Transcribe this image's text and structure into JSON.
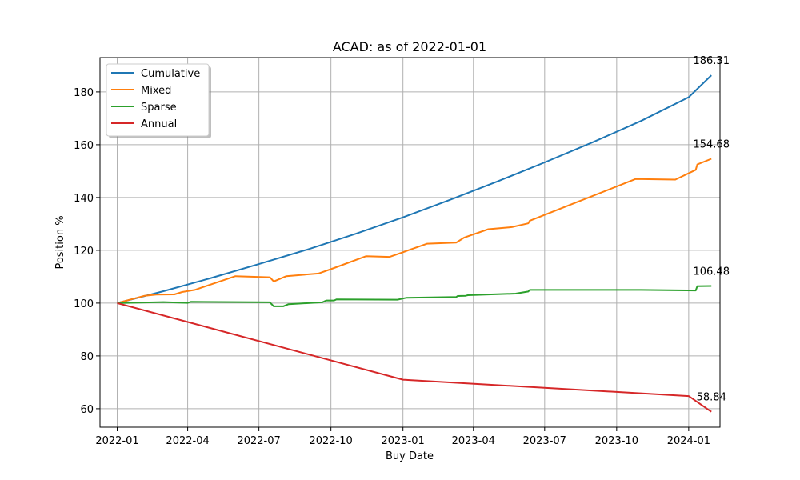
{
  "chart_data": {
    "type": "line",
    "title": "ACAD: as of 2022-01-01",
    "xlabel": "Buy Date",
    "ylabel": "Position %",
    "x_range": [
      "2021-12-10",
      "2024-02-10"
    ],
    "ylim": [
      53,
      193
    ],
    "grid": true,
    "legend_position": "top-left",
    "x_ticks": [
      {
        "date": "2022-01-01",
        "label": "2022-01"
      },
      {
        "date": "2022-04-01",
        "label": "2022-04"
      },
      {
        "date": "2022-07-01",
        "label": "2022-07"
      },
      {
        "date": "2022-10-01",
        "label": "2022-10"
      },
      {
        "date": "2023-01-01",
        "label": "2023-01"
      },
      {
        "date": "2023-04-01",
        "label": "2023-04"
      },
      {
        "date": "2023-07-01",
        "label": "2023-07"
      },
      {
        "date": "2023-10-01",
        "label": "2023-10"
      },
      {
        "date": "2024-01-01",
        "label": "2024-01"
      }
    ],
    "y_ticks": [
      60,
      80,
      100,
      120,
      140,
      160,
      180
    ],
    "series": [
      {
        "name": "Cumulative",
        "color": "#1f77b4",
        "end_label": "186.31",
        "points": [
          [
            "2022-01-01",
            100
          ],
          [
            "2022-03-01",
            104.5
          ],
          [
            "2022-05-01",
            109.5
          ],
          [
            "2022-07-01",
            114.8
          ],
          [
            "2022-09-01",
            120.3
          ],
          [
            "2022-11-01",
            126.2
          ],
          [
            "2023-01-01",
            132.5
          ],
          [
            "2023-03-01",
            139.0
          ],
          [
            "2023-05-01",
            146.0
          ],
          [
            "2023-07-01",
            153.3
          ],
          [
            "2023-09-01",
            161.0
          ],
          [
            "2023-11-01",
            169.0
          ],
          [
            "2024-01-01",
            178.0
          ],
          [
            "2024-01-30",
            186.31
          ]
        ]
      },
      {
        "name": "Mixed",
        "color": "#ff7f0e",
        "end_label": "154.68",
        "points": [
          [
            "2022-01-01",
            100
          ],
          [
            "2022-02-05",
            102.8
          ],
          [
            "2022-02-20",
            103.2
          ],
          [
            "2022-03-15",
            103.3
          ],
          [
            "2022-03-25",
            104.2
          ],
          [
            "2022-04-10",
            105.0
          ],
          [
            "2022-06-01",
            110.2
          ],
          [
            "2022-07-15",
            109.8
          ],
          [
            "2022-07-20",
            108.2
          ],
          [
            "2022-08-05",
            110.2
          ],
          [
            "2022-09-15",
            111.2
          ],
          [
            "2022-10-05",
            113.3
          ],
          [
            "2022-11-15",
            117.8
          ],
          [
            "2022-12-15",
            117.5
          ],
          [
            "2023-02-01",
            122.5
          ],
          [
            "2023-03-10",
            122.9
          ],
          [
            "2023-03-20",
            124.8
          ],
          [
            "2023-04-20",
            128.0
          ],
          [
            "2023-05-20",
            128.8
          ],
          [
            "2023-06-10",
            130.2
          ],
          [
            "2023-06-12",
            131.2
          ],
          [
            "2023-10-25",
            147.0
          ],
          [
            "2023-12-15",
            146.8
          ],
          [
            "2024-01-10",
            150.5
          ],
          [
            "2024-01-12",
            152.5
          ],
          [
            "2024-01-30",
            154.68
          ]
        ]
      },
      {
        "name": "Sparse",
        "color": "#2ca02c",
        "end_label": "106.48",
        "points": [
          [
            "2022-01-01",
            100
          ],
          [
            "2022-03-01",
            100.4
          ],
          [
            "2022-04-01",
            100.1
          ],
          [
            "2022-04-05",
            100.5
          ],
          [
            "2022-07-15",
            100.3
          ],
          [
            "2022-07-20",
            98.8
          ],
          [
            "2022-08-01",
            98.8
          ],
          [
            "2022-08-08",
            99.6
          ],
          [
            "2022-09-20",
            100.3
          ],
          [
            "2022-09-25",
            101.0
          ],
          [
            "2022-10-05",
            101.0
          ],
          [
            "2022-10-08",
            101.4
          ],
          [
            "2022-12-25",
            101.3
          ],
          [
            "2023-01-05",
            102.0
          ],
          [
            "2023-03-10",
            102.3
          ],
          [
            "2023-03-12",
            102.7
          ],
          [
            "2023-03-22",
            102.8
          ],
          [
            "2023-03-25",
            103.0
          ],
          [
            "2023-05-25",
            103.6
          ],
          [
            "2023-06-10",
            104.4
          ],
          [
            "2023-06-12",
            105.0
          ],
          [
            "2023-11-01",
            105.0
          ],
          [
            "2024-01-10",
            104.8
          ],
          [
            "2024-01-12",
            106.4
          ],
          [
            "2024-01-30",
            106.48
          ]
        ]
      },
      {
        "name": "Annual",
        "color": "#d62728",
        "end_label": "58.84",
        "points": [
          [
            "2022-01-01",
            100
          ],
          [
            "2023-01-01",
            71.0
          ],
          [
            "2024-01-01",
            64.8
          ],
          [
            "2024-01-30",
            58.84
          ]
        ]
      }
    ]
  }
}
